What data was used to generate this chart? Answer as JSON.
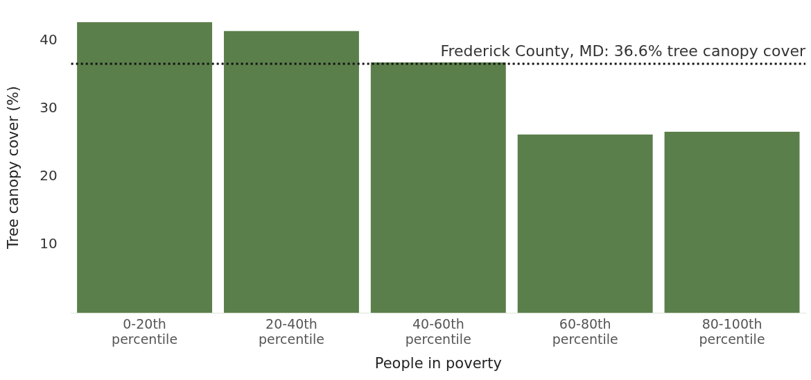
{
  "chart_data": {
    "type": "bar",
    "xlabel": "People in poverty",
    "ylabel": "Tree canopy cover (%)",
    "categories": [
      "0-20th percentile",
      "20-40th percentile",
      "40-60th percentile",
      "60-80th percentile",
      "80-100th percentile"
    ],
    "values": [
      42.7,
      41.4,
      36.8,
      26.2,
      26.6
    ],
    "color": "#5b7f4b",
    "ylim": [
      0,
      42.7
    ],
    "yticks": [
      10,
      20,
      30,
      40
    ],
    "grid": false,
    "legend": false,
    "ref_lines": [
      {
        "axis": "y",
        "value": 36.6,
        "label": "Frederick County, MD: 36.6% tree canopy cover",
        "color": "#111111",
        "line_style": "dotted"
      }
    ]
  }
}
